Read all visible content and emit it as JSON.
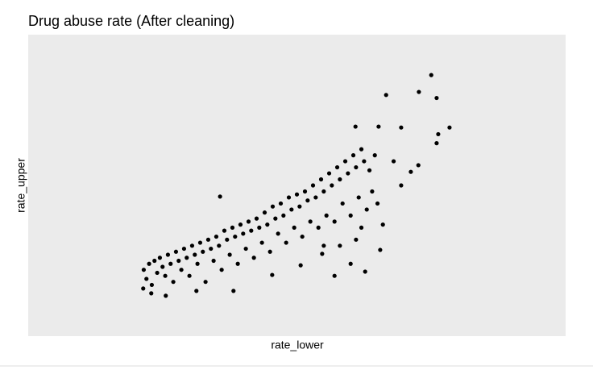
{
  "chart_data": {
    "type": "scatter",
    "title": "Drug abuse rate (After cleaning)",
    "x_label": "rate_lower",
    "y_label": "rate_upper",
    "xlim": [
      0,
      100
    ],
    "ylim": [
      0,
      100
    ],
    "color": "#000000",
    "background": "#ebebeb",
    "x": [
      21.5,
      22,
      22.5,
      23,
      23.5,
      24,
      24.5,
      25,
      25.5,
      26,
      26.5,
      27,
      27.5,
      28,
      28.5,
      29,
      29.5,
      30,
      30.5,
      31,
      31.5,
      32,
      32.5,
      33,
      33.5,
      34,
      34.5,
      35,
      35.5,
      36,
      36.5,
      37,
      37.5,
      38,
      38.5,
      39,
      39.5,
      40,
      40.5,
      41,
      41.5,
      42,
      42.5,
      43,
      43.5,
      44,
      44.5,
      45,
      45.5,
      46,
      46.5,
      47,
      47.5,
      48,
      48.5,
      49,
      49.5,
      50,
      50.5,
      51,
      51.5,
      52,
      52.5,
      53,
      53.5,
      54,
      54.5,
      55,
      55.5,
      56,
      56.5,
      57,
      57.5,
      58,
      58.5,
      59,
      59.5,
      60,
      60.5,
      61,
      61.5,
      62,
      62.5,
      63,
      63.5,
      64,
      64.5,
      65,
      58,
      61,
      60,
      55,
      66,
      62,
      75,
      72.7,
      66.6,
      76,
      60.9,
      65.2,
      69.4,
      78.4,
      76.3,
      76,
      68,
      72.6,
      71.2,
      69.4,
      57,
      62.7,
      65.5,
      38.2,
      25.6,
      22.9,
      21.4,
      31.3,
      45.4,
      35.7,
      50.7,
      54.7
    ],
    "values": [
      22,
      19,
      24,
      17,
      25,
      21,
      26,
      23,
      20,
      27,
      24,
      18,
      28,
      25,
      22,
      29,
      26,
      20,
      30,
      27,
      24,
      31,
      28,
      18,
      32,
      29,
      25,
      33,
      30,
      22,
      35,
      32,
      27,
      36,
      33,
      24,
      37,
      34,
      29,
      38,
      35,
      26,
      39,
      36,
      31,
      41,
      37,
      28,
      43,
      39,
      34,
      44,
      40,
      31,
      46,
      42,
      36,
      47,
      43,
      33,
      48,
      45,
      38,
      50,
      46,
      36,
      52,
      48,
      40,
      54,
      50,
      38,
      56,
      52,
      44,
      58,
      54,
      40,
      60,
      56,
      46,
      62,
      58,
      42,
      55,
      48,
      60,
      44,
      30,
      32,
      24,
      30,
      37,
      36,
      86.6,
      81,
      80,
      79,
      69.5,
      69.5,
      69.2,
      69.2,
      67,
      64,
      58,
      56.7,
      54.5,
      50,
      20,
      21.4,
      28.6,
      15,
      13.4,
      14.2,
      15.8,
      15,
      20.3,
      46.3,
      23.5,
      27.3
    ]
  }
}
